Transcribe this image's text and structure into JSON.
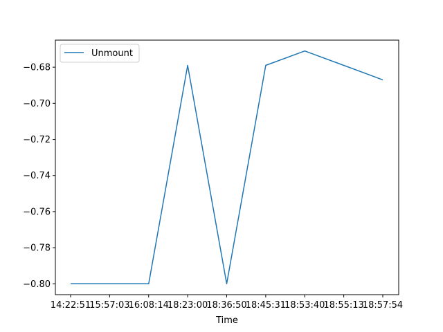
{
  "chart_data": {
    "type": "line",
    "title": "",
    "xlabel": "Time",
    "ylabel": "",
    "categories": [
      "14:22:51",
      "15:57:03",
      "16:08:14",
      "18:23:00",
      "18:36:50",
      "18:45:31",
      "18:53:40",
      "18:55:13",
      "18:57:54"
    ],
    "series": [
      {
        "name": "Unmount",
        "color": "#1f77b4",
        "values": [
          -0.8,
          -0.8,
          -0.8,
          -0.679,
          -0.8,
          -0.679,
          -0.671,
          -0.679,
          -0.687
        ]
      }
    ],
    "yticks": [
      "-0.68",
      "-0.70",
      "-0.72",
      "-0.74",
      "-0.76",
      "-0.78",
      "-0.80"
    ],
    "ylim": [
      -0.806,
      -0.665
    ],
    "grid": false,
    "legend_position": "upper-left"
  }
}
